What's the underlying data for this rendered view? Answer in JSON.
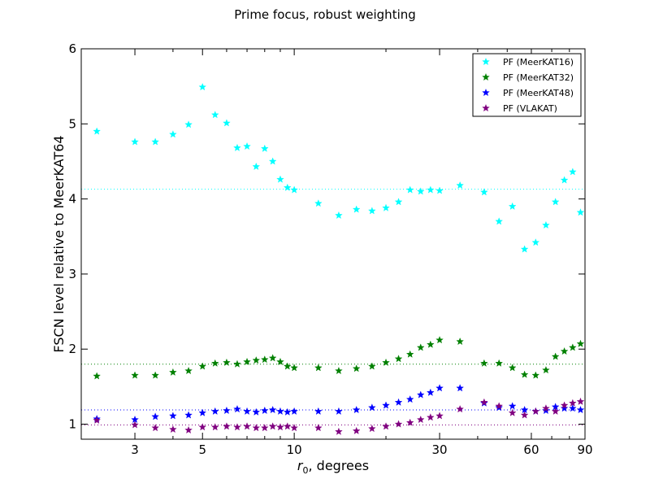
{
  "chart_data": {
    "type": "scatter",
    "title": "Prime focus, robust weighting",
    "xlabel": "r",
    "xlabel_subscript": "0",
    "xlabel_suffix": ", degrees",
    "ylabel": "FSCN level relative to MeerKAT64",
    "xscale": "log",
    "xlim": [
      2,
      90
    ],
    "ylim": [
      0.8,
      6
    ],
    "xticks": [
      3,
      5,
      10,
      30,
      60,
      90
    ],
    "xtick_labels": [
      "3",
      "5",
      "10",
      "30",
      "60",
      "90"
    ],
    "yticks": [
      1,
      2,
      3,
      4,
      5,
      6
    ],
    "ytick_labels": [
      "1",
      "2",
      "3",
      "4",
      "5",
      "6"
    ],
    "grid": false,
    "legend_position": "top-right",
    "marker": "star",
    "x": [
      2.25,
      3.0,
      3.5,
      4.0,
      4.5,
      5.0,
      5.5,
      6.0,
      6.5,
      7.0,
      7.5,
      8.0,
      8.5,
      9.0,
      9.5,
      10.0,
      12.0,
      14.0,
      16.0,
      18.0,
      20.0,
      22.0,
      24.0,
      26.0,
      28.0,
      30.0,
      35.0,
      42.0,
      47.0,
      52.0,
      57.0,
      62.0,
      67.0,
      72.0,
      77.0,
      82.0,
      87.0
    ],
    "series": [
      {
        "name": "PF (MeerKAT16)",
        "color": "#00ffff",
        "reference_level": 4.13,
        "values": [
          4.9,
          4.76,
          4.76,
          4.86,
          4.99,
          5.49,
          5.12,
          5.01,
          4.68,
          4.7,
          4.43,
          4.67,
          4.5,
          4.26,
          4.15,
          4.12,
          3.94,
          3.78,
          3.86,
          3.84,
          3.88,
          3.96,
          4.12,
          4.1,
          4.12,
          4.11,
          4.18,
          4.09,
          3.7,
          3.9,
          3.33,
          3.42,
          3.65,
          3.96,
          4.25,
          4.36,
          3.82
        ]
      },
      {
        "name": "PF (MeerKAT32)",
        "color": "#008000",
        "reference_level": 1.8,
        "values": [
          1.64,
          1.65,
          1.65,
          1.69,
          1.71,
          1.77,
          1.81,
          1.82,
          1.8,
          1.83,
          1.85,
          1.86,
          1.88,
          1.83,
          1.77,
          1.75,
          1.75,
          1.71,
          1.74,
          1.77,
          1.82,
          1.87,
          1.93,
          2.02,
          2.06,
          2.12,
          2.1,
          1.81,
          1.81,
          1.75,
          1.66,
          1.65,
          1.72,
          1.9,
          1.97,
          2.02,
          2.07
        ]
      },
      {
        "name": "PF (MeerKAT48)",
        "color": "#0000ff",
        "reference_level": 1.19,
        "values": [
          1.07,
          1.06,
          1.1,
          1.11,
          1.12,
          1.15,
          1.17,
          1.18,
          1.2,
          1.17,
          1.16,
          1.18,
          1.19,
          1.17,
          1.16,
          1.17,
          1.17,
          1.17,
          1.19,
          1.22,
          1.25,
          1.29,
          1.33,
          1.39,
          1.42,
          1.48,
          1.48,
          1.28,
          1.22,
          1.24,
          1.19,
          1.17,
          1.18,
          1.23,
          1.21,
          1.21,
          1.19
        ]
      },
      {
        "name": "PF (VLAKAT)",
        "color": "#800080",
        "reference_level": 0.99,
        "values": [
          1.05,
          0.99,
          0.95,
          0.93,
          0.92,
          0.96,
          0.96,
          0.97,
          0.96,
          0.97,
          0.95,
          0.95,
          0.97,
          0.96,
          0.97,
          0.95,
          0.95,
          0.9,
          0.91,
          0.94,
          0.97,
          1.0,
          1.02,
          1.06,
          1.09,
          1.11,
          1.2,
          1.29,
          1.24,
          1.15,
          1.12,
          1.17,
          1.21,
          1.17,
          1.25,
          1.28,
          1.3
        ]
      }
    ]
  }
}
